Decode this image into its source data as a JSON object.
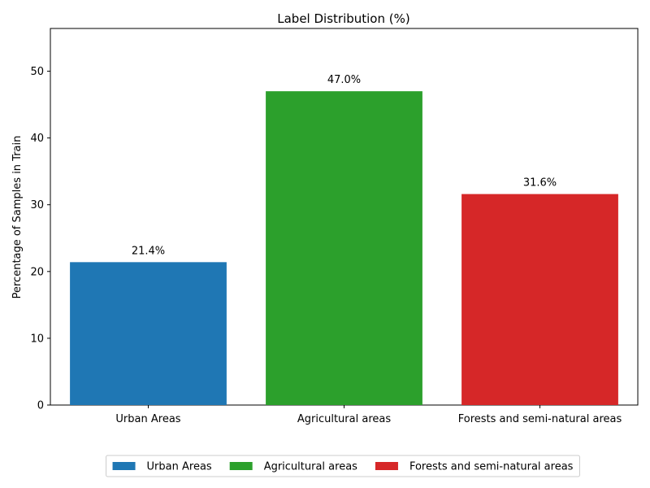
{
  "chart_data": {
    "type": "bar",
    "title": "Label Distribution (%)",
    "xlabel": "",
    "ylabel": "Percentage of Samples in Train",
    "categories": [
      "Urban Areas",
      "Agricultural areas",
      "Forests and semi-natural areas"
    ],
    "values": [
      21.4,
      47.0,
      31.6
    ],
    "data_labels": [
      "21.4%",
      "47.0%",
      "31.6%"
    ],
    "colors": [
      "#1f77b4",
      "#2ca02c",
      "#d62728"
    ],
    "ylim": [
      0,
      56.4
    ],
    "yticks": [
      0,
      10,
      20,
      30,
      40,
      50
    ],
    "grid": false,
    "legend": {
      "placement": "bottom-center",
      "entries": [
        "Urban Areas",
        "Agricultural areas",
        "Forests and semi-natural areas"
      ]
    }
  }
}
